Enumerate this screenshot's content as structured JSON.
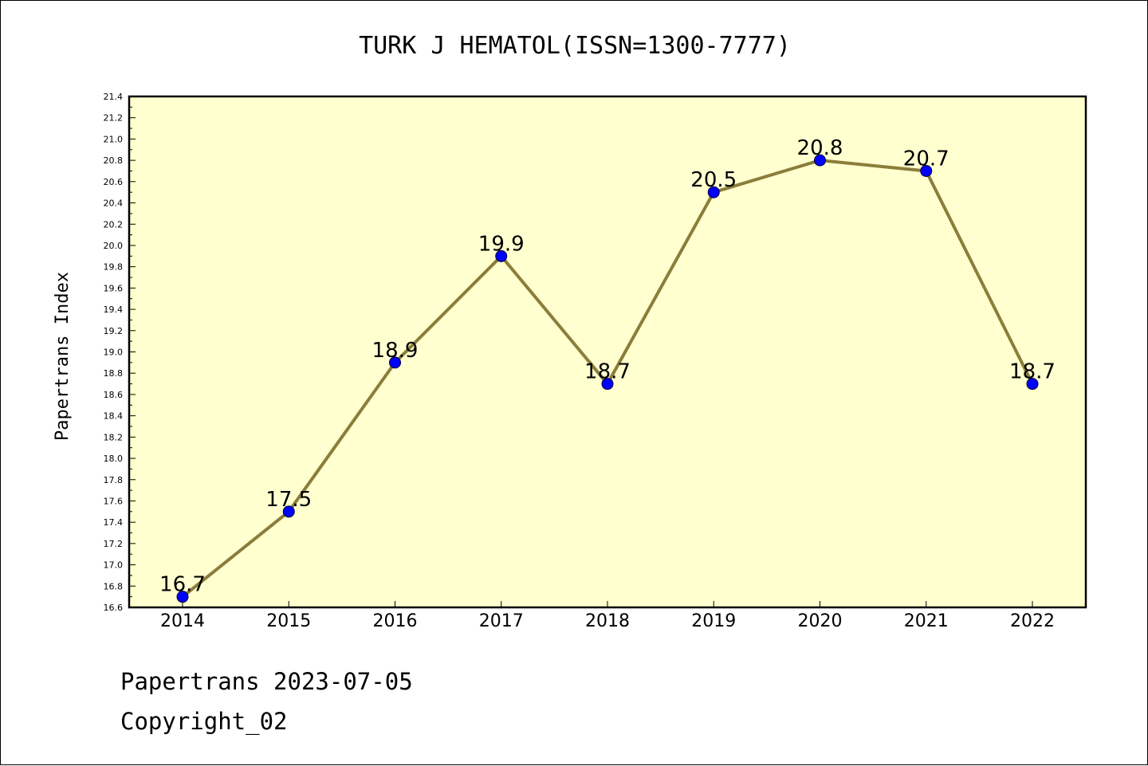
{
  "title": "TURK J HEMATOL(ISSN=1300-7777)",
  "footer": {
    "line1": "Papertrans 2023-07-05",
    "line2": "Copyright_02"
  },
  "colors": {
    "plot_background": "#ffffd0",
    "line": "#8b7d3a",
    "marker": "#0000ff",
    "frame": "#000000"
  },
  "chart_data": {
    "type": "line",
    "title": "TURK J HEMATOL(ISSN=1300-7777)",
    "xlabel": "",
    "ylabel": "Papertrans Index",
    "categories": [
      "2014",
      "2015",
      "2016",
      "2017",
      "2018",
      "2019",
      "2020",
      "2021",
      "2022"
    ],
    "series": [
      {
        "values": [
          16.7,
          17.5,
          18.9,
          19.9,
          18.7,
          20.5,
          20.8,
          20.7,
          18.7
        ]
      }
    ],
    "data_labels": [
      "16.7",
      "17.5",
      "18.9",
      "19.9",
      "18.7",
      "20.5",
      "20.8",
      "20.7",
      "18.7"
    ],
    "ylim": [
      16.6,
      21.4
    ],
    "yticks": [
      "16.6",
      "16.8",
      "17.0",
      "17.2",
      "17.4",
      "17.6",
      "17.8",
      "18.0",
      "18.2",
      "18.4",
      "18.6",
      "18.8",
      "19.0",
      "19.2",
      "19.4",
      "19.6",
      "19.8",
      "20.0",
      "20.2",
      "20.4",
      "20.6",
      "20.8",
      "21.0",
      "21.2",
      "21.4"
    ],
    "grid": false,
    "legend": "none"
  }
}
